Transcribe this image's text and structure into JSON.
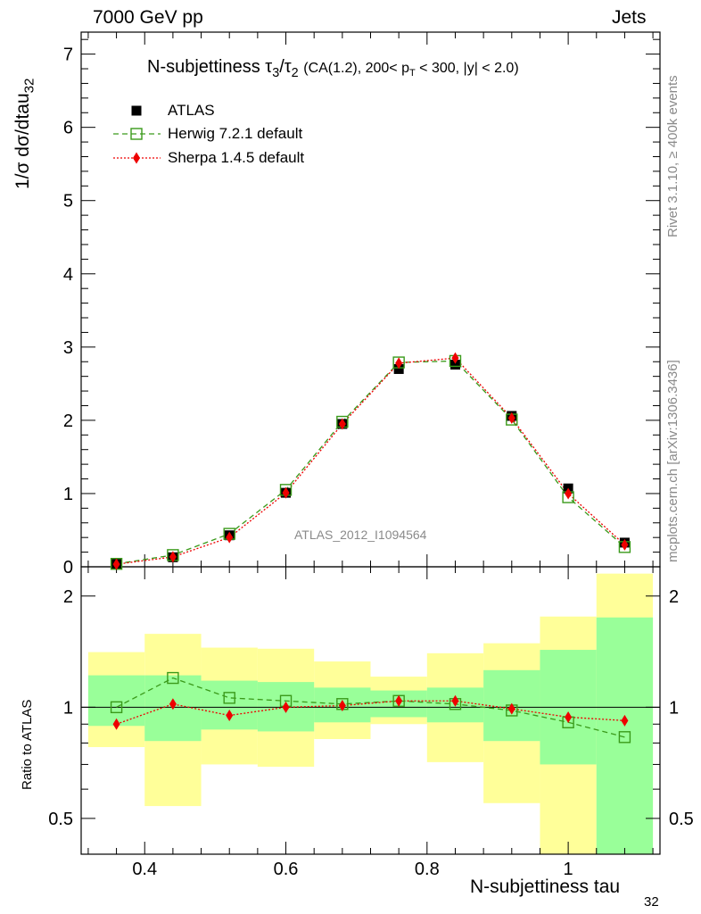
{
  "header": {
    "left": "7000 GeV pp",
    "right": "Jets"
  },
  "title": {
    "main": "N-subjettiness",
    "tau3": "τ",
    "tau3_sub": "3",
    "slash": "/",
    "tau2": "τ",
    "tau2_sub": "2",
    "cuts_a": "(CA(1.2), 200< p",
    "cuts_sub": "T",
    "cuts_b": " < 300, |y| < 2.0)"
  },
  "ylabel_main": "1/σ dσ/dtau",
  "ylabel_main_sub": "32",
  "ylabel_ratio": "Ratio to ATLAS",
  "xlabel": "N-subjettiness tau",
  "xlabel_sub": "32",
  "watermark": "ATLAS_2012_I1094564",
  "side_text_top": "Rivet 3.1.10, ≥ 400k events",
  "side_text_bottom": "mcplots.cern.ch [arXiv:1306.3436]",
  "legend": [
    {
      "label": "ATLAS",
      "color": "#000000",
      "marker": "square"
    },
    {
      "label": "Herwig 7.2.1 default",
      "color": "#3a9a1a",
      "marker": "open-square"
    },
    {
      "label": "Sherpa 1.4.5 default",
      "color": "#ee0000",
      "marker": "diamond"
    }
  ],
  "chart_data": [
    {
      "type": "line",
      "panel": "main",
      "title": "N-subjettiness τ3/τ2 (CA(1.2), 200< pT < 300, |y| < 2.0)",
      "xlabel": "N-subjettiness tau32",
      "ylabel": "1/σ dσ/dtau32",
      "xlim": [
        0.31,
        1.13
      ],
      "ylim": [
        0,
        7.3
      ],
      "xticks": [
        0.4,
        0.6,
        0.8,
        1.0
      ],
      "xtick_labels": [
        "0.4",
        "0.6",
        "0.8",
        "1"
      ],
      "yticks": [
        0,
        1,
        2,
        3,
        4,
        5,
        6,
        7
      ],
      "ytick_labels": [
        "0",
        "1",
        "2",
        "3",
        "4",
        "5",
        "6",
        "7"
      ],
      "bin_edges": [
        0.32,
        0.4,
        0.48,
        0.56,
        0.64,
        0.72,
        0.8,
        0.88,
        0.96,
        1.04,
        1.12
      ],
      "x": [
        0.36,
        0.44,
        0.52,
        0.6,
        0.68,
        0.76,
        0.84,
        0.92,
        1.0,
        1.08
      ],
      "series": [
        {
          "name": "ATLAS",
          "values": [
            0.04,
            0.13,
            0.43,
            1.01,
            1.95,
            2.7,
            2.76,
            2.06,
            1.07,
            0.33
          ]
        },
        {
          "name": "Herwig 7.2.1 default",
          "values": [
            0.04,
            0.16,
            0.45,
            1.05,
            1.98,
            2.79,
            2.81,
            2.01,
            0.95,
            0.27
          ]
        },
        {
          "name": "Sherpa 1.4.5 default",
          "values": [
            0.035,
            0.135,
            0.4,
            1.01,
            1.95,
            2.78,
            2.85,
            2.03,
            1.0,
            0.3
          ]
        }
      ]
    },
    {
      "type": "line",
      "panel": "ratio",
      "ylabel": "Ratio to ATLAS",
      "ylog": true,
      "ylim": [
        0.4,
        2.4
      ],
      "yticks": [
        0.5,
        1,
        2
      ],
      "ytick_labels": [
        "0.5",
        "1",
        "2"
      ],
      "x": [
        0.36,
        0.44,
        0.52,
        0.6,
        0.68,
        0.76,
        0.84,
        0.92,
        1.0,
        1.08
      ],
      "bin_edges": [
        0.32,
        0.4,
        0.48,
        0.56,
        0.64,
        0.72,
        0.8,
        0.88,
        0.96,
        1.04,
        1.12
      ],
      "band_green": [
        [
          0.89,
          1.22
        ],
        [
          0.81,
          1.22
        ],
        [
          0.87,
          1.18
        ],
        [
          0.86,
          1.17
        ],
        [
          0.91,
          1.13
        ],
        [
          0.94,
          1.11
        ],
        [
          0.91,
          1.13
        ],
        [
          0.81,
          1.26
        ],
        [
          0.7,
          1.43
        ],
        [
          0.39,
          1.75
        ]
      ],
      "band_yellow": [
        [
          0.78,
          1.41
        ],
        [
          0.54,
          1.58
        ],
        [
          0.7,
          1.45
        ],
        [
          0.69,
          1.44
        ],
        [
          0.82,
          1.33
        ],
        [
          0.9,
          1.21
        ],
        [
          0.71,
          1.4
        ],
        [
          0.55,
          1.49
        ],
        [
          0.38,
          1.76
        ],
        [
          0.38,
          2.3
        ]
      ],
      "series": [
        {
          "name": "Herwig 7.2.1 default",
          "values": [
            1.0,
            1.2,
            1.06,
            1.04,
            1.02,
            1.04,
            1.02,
            0.98,
            0.91,
            0.83
          ]
        },
        {
          "name": "Sherpa 1.4.5 default",
          "values": [
            0.9,
            1.02,
            0.95,
            1.0,
            1.01,
            1.04,
            1.04,
            0.99,
            0.94,
            0.92
          ]
        }
      ]
    }
  ]
}
